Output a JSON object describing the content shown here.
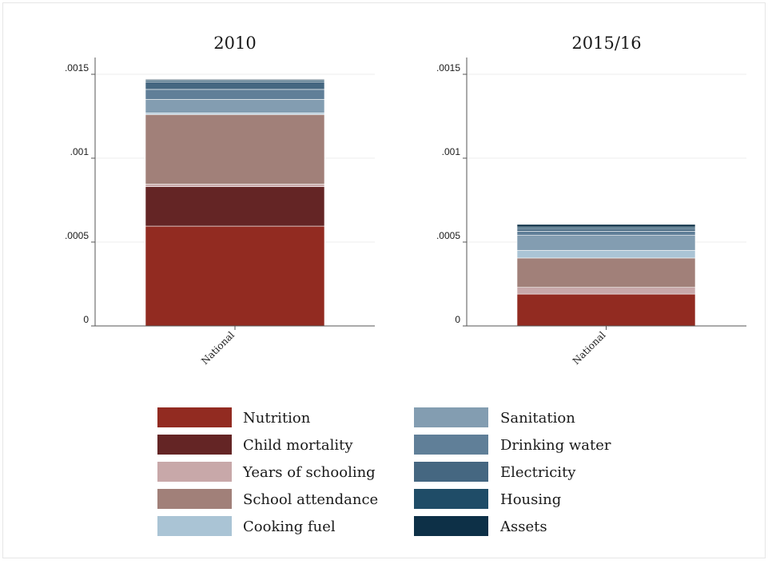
{
  "chart_data": {
    "type": "bar",
    "stacked": true,
    "panels": [
      {
        "title": "2010",
        "categories": [
          "National"
        ],
        "ylim": [
          0,
          0.0016
        ],
        "yticks": [
          {
            "value": 0,
            "label": "0"
          },
          {
            "value": 0.0005,
            "label": ".0005"
          },
          {
            "value": 0.001,
            "label": ".001"
          },
          {
            "value": 0.0015,
            "label": ".0015"
          }
        ],
        "grid": true,
        "series_values": [
          0.000595,
          0.000235,
          1.5e-05,
          0.000415,
          1e-05,
          8e-05,
          6e-05,
          4.5e-05,
          1e-05,
          5e-06
        ]
      },
      {
        "title": "2015/16",
        "categories": [
          "National"
        ],
        "ylim": [
          0,
          0.0016
        ],
        "yticks": [
          {
            "value": 0,
            "label": "0"
          },
          {
            "value": 0.0005,
            "label": ".0005"
          },
          {
            "value": 0.001,
            "label": ".001"
          },
          {
            "value": 0.0015,
            "label": ".0015"
          }
        ],
        "grid": true,
        "series_values": [
          0.00019,
          0.0,
          4e-05,
          0.000175,
          4.5e-05,
          9e-05,
          2.5e-05,
          1.5e-05,
          1e-05,
          1.5e-05
        ]
      }
    ],
    "series": [
      {
        "name": "Nutrition",
        "color": "#922b21"
      },
      {
        "name": "Child mortality",
        "color": "#642525"
      },
      {
        "name": "Years of schooling",
        "color": "#c8a8a9"
      },
      {
        "name": "School attendance",
        "color": "#a18079"
      },
      {
        "name": "Cooking fuel",
        "color": "#aac4d5"
      },
      {
        "name": "Sanitation",
        "color": "#839db1"
      },
      {
        "name": "Drinking water",
        "color": "#607f98"
      },
      {
        "name": "Electricity",
        "color": "#456781"
      },
      {
        "name": "Housing",
        "color": "#1f4c67"
      },
      {
        "name": "Assets",
        "color": "#0d3047"
      }
    ],
    "legend_position": "bottom"
  }
}
